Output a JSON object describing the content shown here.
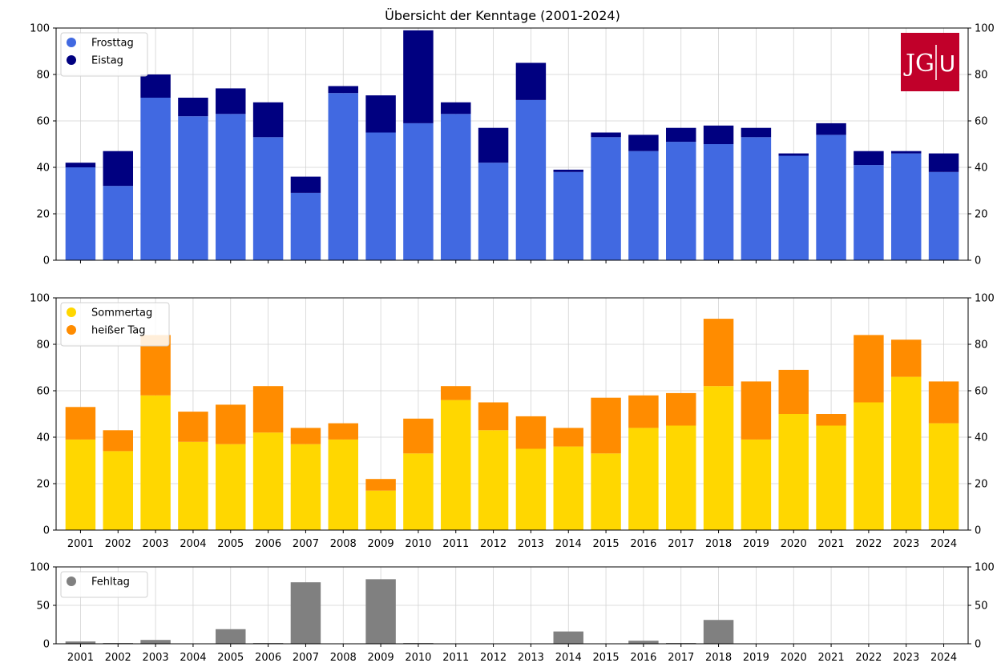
{
  "chart_data": {
    "type": "bar",
    "title": "Übersicht der Kenntage (2001-2024)",
    "logo_text": "JG|U",
    "categories": [
      "2001",
      "2002",
      "2003",
      "2004",
      "2005",
      "2006",
      "2007",
      "2008",
      "2009",
      "2010",
      "2011",
      "2012",
      "2013",
      "2014",
      "2015",
      "2016",
      "2017",
      "2018",
      "2019",
      "2020",
      "2021",
      "2022",
      "2023",
      "2024"
    ],
    "panels": [
      {
        "ylim": [
          0,
          100
        ],
        "yticks": [
          0,
          20,
          40,
          60,
          80,
          100
        ],
        "stacked": true,
        "show_x_labels": false,
        "series": [
          {
            "name": "Frosttag",
            "color": "#4169e1",
            "values": [
              40,
              32,
              70,
              62,
              63,
              53,
              29,
              72,
              55,
              59,
              63,
              42,
              69,
              38,
              53,
              47,
              51,
              50,
              53,
              45,
              54,
              41,
              46,
              38
            ]
          },
          {
            "name": "Eistag",
            "color": "#000080",
            "values": [
              2,
              15,
              10,
              8,
              11,
              15,
              7,
              3,
              16,
              40,
              5,
              15,
              16,
              1,
              2,
              7,
              6,
              8,
              4,
              1,
              5,
              6,
              1,
              8
            ]
          }
        ]
      },
      {
        "ylim": [
          0,
          100
        ],
        "yticks": [
          0,
          20,
          40,
          60,
          80,
          100
        ],
        "stacked": true,
        "show_x_labels": true,
        "series": [
          {
            "name": "Sommertag",
            "color": "#ffd700",
            "values": [
              39,
              34,
              58,
              38,
              37,
              42,
              37,
              39,
              17,
              33,
              56,
              43,
              35,
              36,
              33,
              44,
              45,
              62,
              39,
              50,
              45,
              55,
              66,
              46
            ]
          },
          {
            "name": "heißer Tag",
            "color": "#ff8c00",
            "values": [
              14,
              9,
              26,
              13,
              17,
              20,
              7,
              7,
              5,
              15,
              6,
              12,
              14,
              8,
              24,
              14,
              14,
              29,
              25,
              19,
              5,
              29,
              16,
              18
            ]
          }
        ]
      },
      {
        "ylim": [
          0,
          100
        ],
        "yticks": [
          0,
          50,
          100
        ],
        "stacked": false,
        "show_x_labels": true,
        "series": [
          {
            "name": "Fehltag",
            "color": "#808080",
            "values": [
              3,
              1,
              5,
              0,
              19,
              1,
              80,
              0,
              84,
              1,
              0,
              0,
              0,
              16,
              0,
              4,
              1,
              31,
              0,
              0,
              0,
              0,
              0,
              0
            ]
          }
        ]
      }
    ],
    "grid": true,
    "legend_position": "top-left"
  }
}
